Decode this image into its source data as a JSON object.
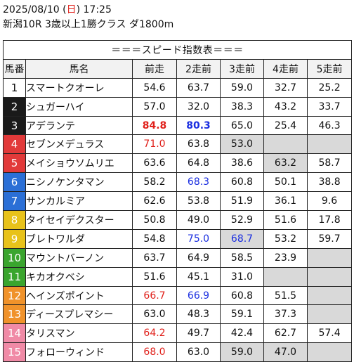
{
  "header": {
    "date_before": "2025/08/10 (",
    "weekday": "日",
    "date_after": ") 17:25",
    "race": "新潟10R 3歳以上1勝クラス ダ1800m"
  },
  "table_title": "＝＝＝スピード指数表＝＝＝",
  "columns": [
    "馬番",
    "馬名",
    "前走",
    "2走前",
    "3走前",
    "4走前",
    "5走前"
  ],
  "colors": {
    "highlight_red": "#e0201a",
    "highlight_blue": "#1a2ee0",
    "empty_cell": "#d9d9d9"
  },
  "rows": [
    {
      "num": "1",
      "name": "スマートクオーレ",
      "bg": "#ffffff",
      "fg": "#111111",
      "vals": [
        {
          "v": "54.6"
        },
        {
          "v": "63.7"
        },
        {
          "v": "59.0"
        },
        {
          "v": "32.7"
        },
        {
          "v": "25.2"
        }
      ]
    },
    {
      "num": "2",
      "name": "シュガーハイ",
      "bg": "#1a1a1a",
      "fg": "#ffffff",
      "vals": [
        {
          "v": "57.0"
        },
        {
          "v": "32.0"
        },
        {
          "v": "38.3"
        },
        {
          "v": "43.2"
        },
        {
          "v": "33.7"
        }
      ]
    },
    {
      "num": "3",
      "name": "アデランテ",
      "bg": "#1a1a1a",
      "fg": "#ffffff",
      "vals": [
        {
          "v": "84.8",
          "c": "red",
          "b": true
        },
        {
          "v": "80.3",
          "c": "blue",
          "b": true
        },
        {
          "v": "65.0"
        },
        {
          "v": "25.4"
        },
        {
          "v": "46.3"
        }
      ]
    },
    {
      "num": "4",
      "name": "セブンメデュラス",
      "bg": "#e23a3a",
      "fg": "#ffffff",
      "vals": [
        {
          "v": "71.0",
          "c": "red"
        },
        {
          "v": "63.8"
        },
        {
          "v": "53.0",
          "g": true
        },
        {
          "v": "",
          "g": true
        },
        {
          "v": "",
          "g": true
        }
      ]
    },
    {
      "num": "5",
      "name": "メイショウソムリエ",
      "bg": "#e23a3a",
      "fg": "#ffffff",
      "vals": [
        {
          "v": "63.6"
        },
        {
          "v": "64.8"
        },
        {
          "v": "38.6"
        },
        {
          "v": "63.2",
          "g": true
        },
        {
          "v": "58.7"
        }
      ]
    },
    {
      "num": "6",
      "name": "ニシノケンタマン",
      "bg": "#2b6fd6",
      "fg": "#ffffff",
      "vals": [
        {
          "v": "58.2"
        },
        {
          "v": "68.3",
          "c": "blue"
        },
        {
          "v": "60.8"
        },
        {
          "v": "50.1"
        },
        {
          "v": "38.8"
        }
      ]
    },
    {
      "num": "7",
      "name": "サンカルミア",
      "bg": "#2b6fd6",
      "fg": "#ffffff",
      "vals": [
        {
          "v": "62.6"
        },
        {
          "v": "53.8"
        },
        {
          "v": "51.9"
        },
        {
          "v": "36.1"
        },
        {
          "v": "9.6"
        }
      ]
    },
    {
      "num": "8",
      "name": "タイセイデクスター",
      "bg": "#e8c21a",
      "fg": "#ffffff",
      "vals": [
        {
          "v": "50.8"
        },
        {
          "v": "49.0"
        },
        {
          "v": "52.9"
        },
        {
          "v": "51.6"
        },
        {
          "v": "17.8"
        }
      ]
    },
    {
      "num": "9",
      "name": "ブレトワルダ",
      "bg": "#e8c21a",
      "fg": "#ffffff",
      "vals": [
        {
          "v": "54.8"
        },
        {
          "v": "75.0",
          "c": "blue"
        },
        {
          "v": "68.7",
          "c": "blue",
          "g": true
        },
        {
          "v": "53.2"
        },
        {
          "v": "59.7"
        }
      ]
    },
    {
      "num": "10",
      "name": "マウントバーノン",
      "bg": "#3aa52e",
      "fg": "#ffffff",
      "vals": [
        {
          "v": "63.7"
        },
        {
          "v": "64.9"
        },
        {
          "v": "58.5"
        },
        {
          "v": "23.9"
        },
        {
          "v": "",
          "g": true
        }
      ]
    },
    {
      "num": "11",
      "name": "キカオクベシ",
      "bg": "#3aa52e",
      "fg": "#ffffff",
      "vals": [
        {
          "v": "51.6"
        },
        {
          "v": "45.1"
        },
        {
          "v": "31.0"
        },
        {
          "v": "",
          "g": true
        },
        {
          "v": "",
          "g": true
        }
      ]
    },
    {
      "num": "12",
      "name": "ヘインズポイント",
      "bg": "#f0922a",
      "fg": "#ffffff",
      "vals": [
        {
          "v": "66.7",
          "c": "red"
        },
        {
          "v": "66.9",
          "c": "blue"
        },
        {
          "v": "60.8"
        },
        {
          "v": "51.5"
        },
        {
          "v": "",
          "g": true
        }
      ]
    },
    {
      "num": "13",
      "name": "ディースプレマシー",
      "bg": "#f0922a",
      "fg": "#ffffff",
      "vals": [
        {
          "v": "63.0"
        },
        {
          "v": "48.3"
        },
        {
          "v": "59.1"
        },
        {
          "v": "37.3"
        },
        {
          "v": "",
          "g": true
        }
      ]
    },
    {
      "num": "14",
      "name": "タリスマン",
      "bg": "#f08aa6",
      "fg": "#ffffff",
      "vals": [
        {
          "v": "64.2",
          "c": "red"
        },
        {
          "v": "49.7"
        },
        {
          "v": "42.4"
        },
        {
          "v": "62.7"
        },
        {
          "v": "57.4"
        }
      ]
    },
    {
      "num": "15",
      "name": "フォローウィンド",
      "bg": "#f08aa6",
      "fg": "#ffffff",
      "vals": [
        {
          "v": "68.0",
          "c": "red"
        },
        {
          "v": "63.0"
        },
        {
          "v": "59.0",
          "g": true
        },
        {
          "v": "47.0",
          "g": true
        },
        {
          "v": "",
          "g": true
        }
      ]
    }
  ]
}
